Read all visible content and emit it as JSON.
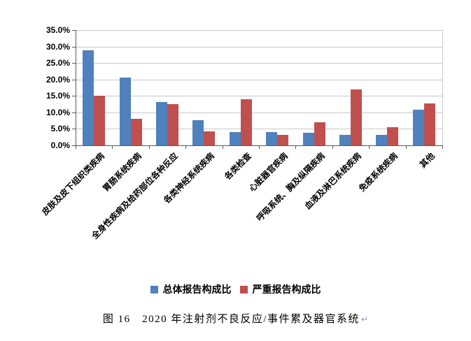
{
  "chart_data": {
    "type": "bar",
    "title": "",
    "categories": [
      "皮肤及皮下组织类疾病",
      "胃肠系统疾病",
      "全身性疾病及给药部位各种反应",
      "各类神经系统疾病",
      "各类检查",
      "心脏器官疾病",
      "呼吸系统、胸及纵隔疾病",
      "血液及淋巴系统疾病",
      "免疫系统疾病",
      "其他"
    ],
    "series": [
      {
        "name": "总体报告构成比",
        "color": "#4F81BD",
        "values": [
          28.8,
          20.6,
          13.1,
          7.7,
          4.0,
          4.0,
          3.9,
          3.1,
          3.2,
          10.9
        ]
      },
      {
        "name": "严重报告构成比",
        "color": "#C0504D",
        "values": [
          15.0,
          8.1,
          12.5,
          4.2,
          14.0,
          3.1,
          7.0,
          16.9,
          5.5,
          12.8
        ]
      }
    ],
    "xlabel": "",
    "ylabel": "",
    "ylim": [
      0,
      35
    ],
    "y_tick_step": 5,
    "y_tick_labels": [
      "0.0%",
      "5.0%",
      "10.0%",
      "15.0%",
      "20.0%",
      "25.0%",
      "30.0%",
      "35.0%"
    ],
    "grid": true,
    "legend_position": "bottom"
  },
  "caption": {
    "text": "图 16　2020 年注射剂不良反应/事件累及器官系统",
    "return_mark": "↵"
  },
  "colors": {
    "axis": "#595959",
    "gridline": "#C9C9C9",
    "plot_border": "#C9C9C9",
    "background": "#FFFFFF",
    "paragraph_mark": "#8AA0B8"
  }
}
